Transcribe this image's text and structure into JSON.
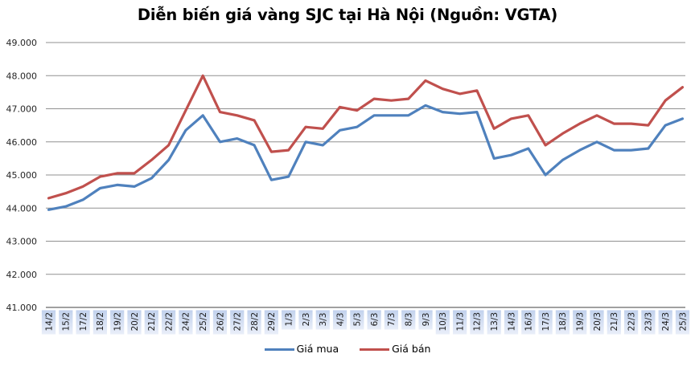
{
  "title": "Diễn biến giá vàng SJC tại Hà Nội (Nguồn: VGTA)",
  "legend": {
    "items": [
      "Giá mua",
      "Giá bán"
    ]
  },
  "chart_data": {
    "type": "line",
    "title": "Diễn biến giá vàng SJC tại Hà Nội (Nguồn: VGTA)",
    "xlabel": "",
    "ylabel": "",
    "ylim": [
      41,
      49
    ],
    "grid": true,
    "legend_position": "bottom",
    "y_ticks": [
      "49.000",
      "48.000",
      "47.000",
      "46.000",
      "45.000",
      "44.000",
      "43.000",
      "42.000",
      "41.000"
    ],
    "categories": [
      "14/2",
      "15/2",
      "17/2",
      "18/2",
      "19/2",
      "20/2",
      "21/2",
      "22/2",
      "24/2",
      "25/2",
      "26/2",
      "27/2",
      "28/2",
      "29/2",
      "1/3",
      "2/3",
      "3/3",
      "4/3",
      "5/3",
      "6/3",
      "7/3",
      "8/3",
      "9/3",
      "10/3",
      "11/3",
      "12/3",
      "13/3",
      "14/3",
      "16/3",
      "17/3",
      "18/3",
      "19/3",
      "20/3",
      "21/3",
      "22/3",
      "23/3",
      "24/3",
      "25/3"
    ],
    "series": [
      {
        "name": "Giá mua",
        "color": "#4F81BD",
        "values": [
          43.95,
          44.05,
          44.25,
          44.6,
          44.7,
          44.65,
          44.9,
          45.45,
          46.35,
          46.8,
          46.0,
          46.1,
          45.9,
          44.85,
          44.95,
          46.0,
          45.9,
          46.35,
          46.45,
          46.8,
          46.8,
          46.8,
          47.1,
          46.9,
          46.85,
          46.9,
          45.5,
          45.6,
          45.8,
          45.0,
          45.45,
          45.75,
          46.0,
          45.75,
          45.75,
          45.8,
          46.5,
          46.7
        ]
      },
      {
        "name": "Giá bán",
        "color": "#C0504D",
        "values": [
          44.3,
          44.45,
          44.65,
          44.95,
          45.05,
          45.05,
          45.45,
          45.9,
          46.95,
          48.0,
          46.9,
          46.8,
          46.65,
          45.7,
          45.75,
          46.45,
          46.4,
          47.05,
          46.95,
          47.3,
          47.25,
          47.3,
          47.85,
          47.6,
          47.45,
          47.55,
          46.4,
          46.7,
          46.8,
          45.9,
          46.25,
          46.55,
          46.8,
          46.55,
          46.55,
          46.5,
          47.25,
          47.65
        ]
      }
    ],
    "colors": {
      "gridline": "#919191",
      "axis": "#808080",
      "tick_box_top": "#c2d2ed",
      "tick_box_bottom": "#e9eef9",
      "y_label_text": "#262626",
      "x_label_text": "#1a1a1a",
      "background": "#ffffff"
    }
  }
}
